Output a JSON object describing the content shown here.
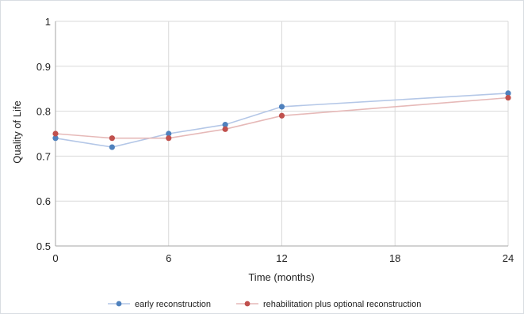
{
  "chart_data": {
    "type": "line",
    "title": "",
    "xlabel": "Time (months)",
    "ylabel": "Quality of Life",
    "xlim": [
      0,
      24
    ],
    "ylim": [
      0.5,
      1
    ],
    "x_ticks": [
      0,
      6,
      12,
      18,
      24
    ],
    "y_ticks": [
      0.5,
      0.6,
      0.7,
      0.8,
      0.9,
      1
    ],
    "y_tick_labels": [
      "0.5",
      "0.6",
      "0.7",
      "0.8",
      "0.9",
      "1"
    ],
    "grid": true,
    "legend_position": "bottom",
    "series": [
      {
        "name": "early reconstruction",
        "color": "#4f81bd",
        "line_color": "#b4c7e7",
        "x": [
          0,
          3,
          6,
          9,
          12,
          24
        ],
        "y": [
          0.74,
          0.72,
          0.75,
          0.77,
          0.81,
          0.84
        ]
      },
      {
        "name": "rehabilitation plus optional reconstruction",
        "color": "#c0504d",
        "line_color": "#e6b9b8",
        "x": [
          0,
          3,
          6,
          9,
          12,
          24
        ],
        "y": [
          0.75,
          0.74,
          0.74,
          0.76,
          0.79,
          0.83
        ]
      }
    ]
  }
}
